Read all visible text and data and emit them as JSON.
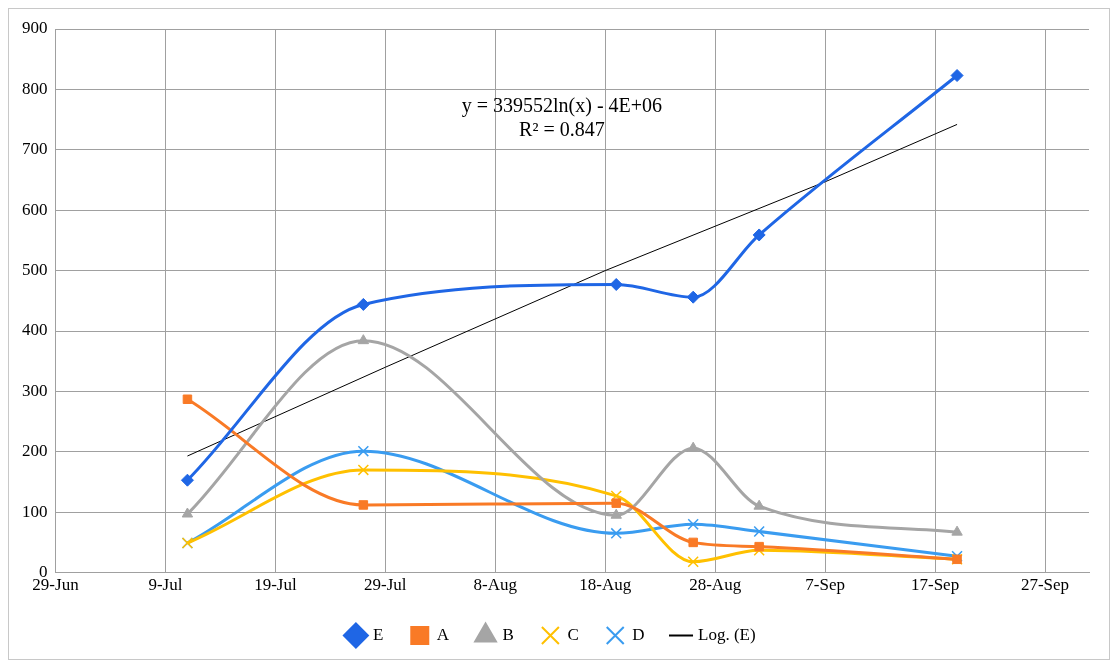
{
  "chart_data": {
    "type": "line",
    "x": [
      "--07-11",
      "--07-27",
      "--08-19",
      "--08-26",
      "--09-01",
      "--09-19"
    ],
    "xlim": [
      "--06-29",
      "--10-01"
    ],
    "xticks": [
      {
        "value": "--06-29",
        "label": "29-Jun"
      },
      {
        "value": "--07-09",
        "label": "9-Jul"
      },
      {
        "value": "--07-19",
        "label": "19-Jul"
      },
      {
        "value": "--07-29",
        "label": "29-Jul"
      },
      {
        "value": "--08-08",
        "label": "8-Aug"
      },
      {
        "value": "--08-18",
        "label": "18-Aug"
      },
      {
        "value": "--08-28",
        "label": "28-Aug"
      },
      {
        "value": "--09-07",
        "label": "7-Sep"
      },
      {
        "value": "--09-17",
        "label": "17-Sep"
      },
      {
        "value": "--09-27",
        "label": "27-Sep"
      }
    ],
    "ylim": [
      0,
      900
    ],
    "yticks": [
      0,
      100,
      200,
      300,
      400,
      500,
      600,
      700,
      800,
      900
    ],
    "grid": true,
    "legend": "bottom",
    "line_style": "solid",
    "annotations": [
      "y = 339552ln(x) - 4E+06",
      "R² = 0.847"
    ],
    "series": [
      {
        "name": "E",
        "color": "#1f66e5",
        "marker": "diamond",
        "values": [
          153,
          444,
          477,
          456,
          559,
          823
        ]
      },
      {
        "name": "A",
        "color": "#f97a26",
        "marker": "square",
        "values": [
          287,
          112,
          115,
          50,
          43,
          22
        ]
      },
      {
        "name": "B",
        "color": "#a5a5a5",
        "marker": "triangle",
        "values": [
          97,
          384,
          95,
          206,
          110,
          67
        ]
      },
      {
        "name": "C",
        "color": "#ffc000",
        "marker": "cross",
        "values": [
          49,
          170,
          127,
          18,
          37,
          22
        ]
      },
      {
        "name": "D",
        "color": "#3a9cf0",
        "marker": "cross",
        "values": [
          49,
          201,
          65,
          80,
          68,
          27
        ]
      },
      {
        "name": "Log. (E)",
        "color": "#000000",
        "marker": "none",
        "x": [
          "--07-11",
          "--07-29",
          "--08-18",
          "--09-07",
          "--09-19"
        ],
        "values": [
          193,
          340,
          500,
          647,
          742
        ]
      }
    ]
  }
}
